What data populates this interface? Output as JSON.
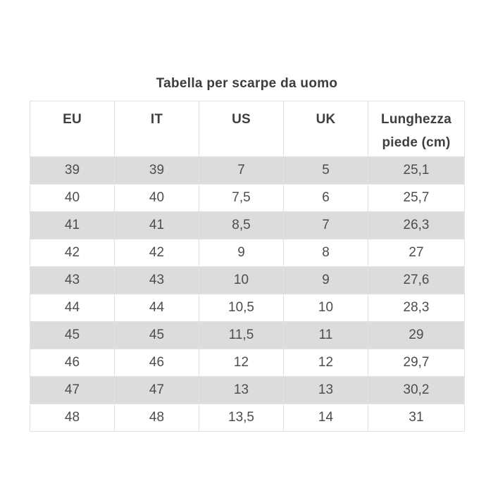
{
  "title": "Tabella per scarpe da uomo",
  "table": {
    "columns": [
      "EU",
      "IT",
      "US",
      "UK",
      "Lunghezza piede (cm)"
    ],
    "rows": [
      [
        "39",
        "39",
        "7",
        "5",
        "25,1"
      ],
      [
        "40",
        "40",
        "7,5",
        "6",
        "25,7"
      ],
      [
        "41",
        "41",
        "8,5",
        "7",
        "26,3"
      ],
      [
        "42",
        "42",
        "9",
        "8",
        "27"
      ],
      [
        "43",
        "43",
        "10",
        "9",
        "27,6"
      ],
      [
        "44",
        "44",
        "10,5",
        "10",
        "28,3"
      ],
      [
        "45",
        "45",
        "11,5",
        "11",
        "29"
      ],
      [
        "46",
        "46",
        "12",
        "12",
        "29,7"
      ],
      [
        "47",
        "47",
        "13",
        "13",
        "30,2"
      ],
      [
        "48",
        "48",
        "13,5",
        "14",
        "31"
      ]
    ]
  },
  "colors": {
    "page_bg": "#ffffff",
    "stripe_row_bg": "#dcdcdc",
    "white_row_bg": "#ffffff",
    "table_border": "#e2e2e2",
    "title_text": "#3c3c3c",
    "header_text": "#3f3f3f",
    "cell_text": "#4d4d4d"
  }
}
